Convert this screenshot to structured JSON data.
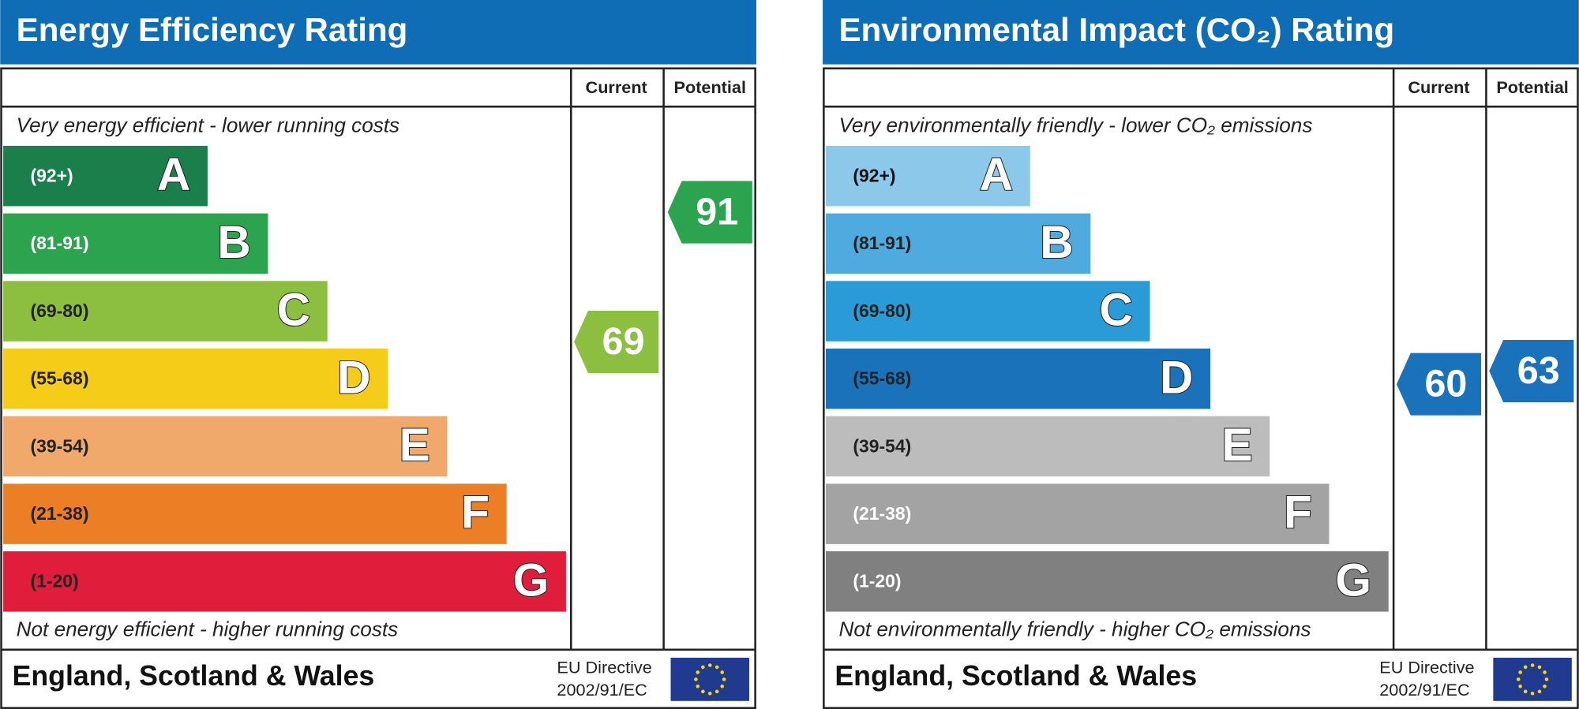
{
  "panels": [
    {
      "title": "Energy Efficiency Rating",
      "columns": [
        "Current",
        "Potential"
      ],
      "top_note": "Very energy efficient - lower running costs",
      "bands": [
        {
          "range": "(92+)",
          "letter": "A"
        },
        {
          "range": "(81-91)",
          "letter": "B"
        },
        {
          "range": "(69-80)",
          "letter": "C"
        },
        {
          "range": "(55-68)",
          "letter": "D"
        },
        {
          "range": "(39-54)",
          "letter": "E"
        },
        {
          "range": "(21-38)",
          "letter": "F"
        },
        {
          "range": "(1-20)",
          "letter": "G"
        }
      ],
      "bottom_note": "Not energy efficient - higher running costs",
      "current": 69,
      "potential": 91,
      "footer": "England, Scotland & Wales",
      "directive": [
        "EU Directive",
        "2002/91/EC"
      ]
    },
    {
      "title": "Environmental Impact (CO₂) Rating",
      "columns": [
        "Current",
        "Potential"
      ],
      "top_note": "Very environmentally friendly - lower CO₂ emissions",
      "bands": [
        {
          "range": "(92+)",
          "letter": "A"
        },
        {
          "range": "(81-91)",
          "letter": "B"
        },
        {
          "range": "(69-80)",
          "letter": "C"
        },
        {
          "range": "(55-68)",
          "letter": "D"
        },
        {
          "range": "(39-54)",
          "letter": "E"
        },
        {
          "range": "(21-38)",
          "letter": "F"
        },
        {
          "range": "(1-20)",
          "letter": "G"
        }
      ],
      "bottom_note": "Not environmentally friendly - higher CO₂ emissions",
      "current": 60,
      "potential": 63,
      "footer": "England, Scotland & Wales",
      "directive": [
        "EU Directive",
        "2002/91/EC"
      ]
    }
  ]
}
